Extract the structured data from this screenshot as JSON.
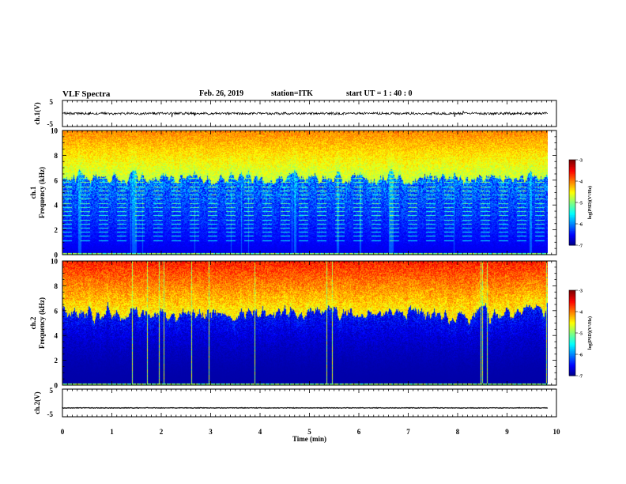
{
  "header": {
    "title": "VLF Spectra",
    "date": "Feb. 26, 2019",
    "station": "station=ITK",
    "start_ut": "start  UT =   1 : 40 : 0"
  },
  "chart_data": [
    {
      "type": "line",
      "panel": "ch1-waveform",
      "ylabel": "ch.1(V)",
      "ylim": [
        -5,
        5
      ],
      "y_ticks": [
        "5",
        "-5"
      ],
      "x": [
        0,
        9.83
      ],
      "series": [
        {
          "values": [
            0,
            0
          ]
        }
      ]
    },
    {
      "type": "heatmap",
      "panel": "ch1-spectrogram",
      "ylabel": [
        "ch.1",
        "Frequency (kHz)"
      ],
      "ylim": [
        0,
        10
      ],
      "y_ticks": [
        "0",
        "2",
        "4",
        "6",
        "8",
        "10"
      ],
      "x_range": [
        0,
        9.83
      ],
      "colorbar": {
        "label": "log(PSD)(V²/Hz)",
        "range": [
          -7,
          -3
        ],
        "ticks": [
          "-3",
          "-4",
          "-5",
          "-6",
          "-7"
        ],
        "colormap": "jet"
      }
    },
    {
      "type": "heatmap",
      "panel": "ch2-spectrogram",
      "ylabel": [
        "ch.2",
        "Frequency (kHz)"
      ],
      "ylim": [
        0,
        10
      ],
      "y_ticks": [
        "0",
        "2",
        "4",
        "6",
        "8",
        "10"
      ],
      "x_range": [
        0,
        9.83
      ],
      "colorbar": {
        "label": "log(PSD)(V²/Hz)",
        "range": [
          -7,
          -3
        ],
        "ticks": [
          "-3",
          "-4",
          "-5",
          "-6",
          "-7"
        ],
        "colormap": "jet"
      }
    },
    {
      "type": "line",
      "panel": "ch2-waveform",
      "ylabel": "ch.2(V)",
      "ylim": [
        -5,
        5
      ],
      "y_ticks": [
        "5",
        "-5"
      ],
      "x": [
        0,
        9.83
      ],
      "series": [
        {
          "values": [
            -1.8,
            -1.8
          ]
        }
      ]
    }
  ],
  "x_axis": {
    "label": "Time (min)",
    "ticks": [
      "0",
      "1",
      "2",
      "3",
      "4",
      "5",
      "6",
      "7",
      "8",
      "9",
      "10"
    ],
    "range": [
      0,
      10
    ]
  }
}
